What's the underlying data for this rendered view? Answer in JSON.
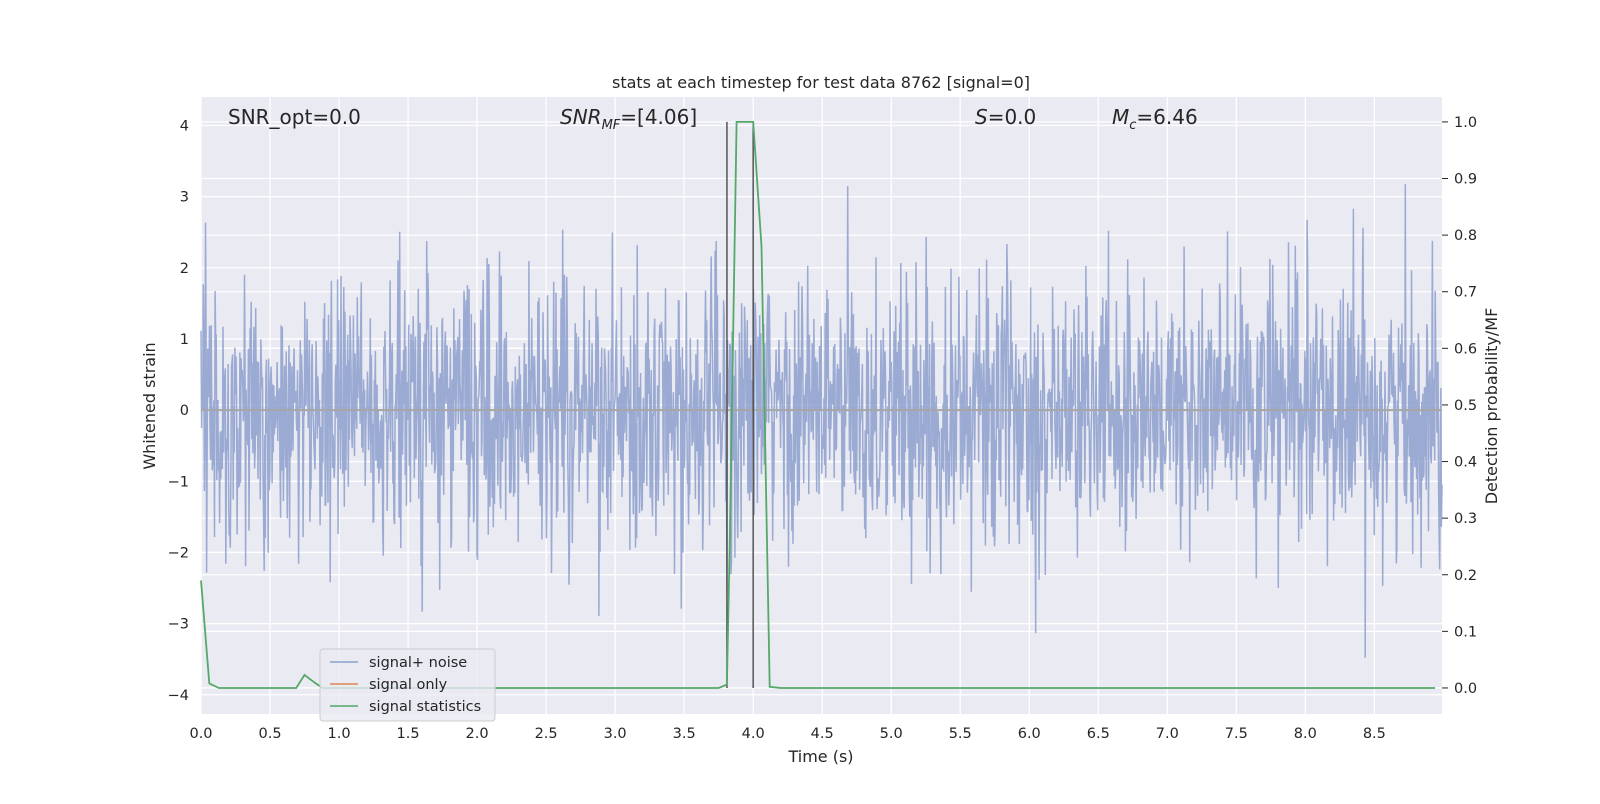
{
  "chart_data": {
    "type": "line",
    "title": "stats at each timestep for test data 8762 [signal=0]",
    "xlabel": "Time (s)",
    "ylabel": "Whitened strain",
    "y2label": "Detection probability/MF",
    "xlim": [
      0.0,
      8.99
    ],
    "ylim": [
      -4.27,
      4.4
    ],
    "y2lim": [
      -0.046,
      1.044
    ],
    "x_ticks": [
      "0.0",
      "0.5",
      "1.0",
      "1.5",
      "2.0",
      "2.5",
      "3.0",
      "3.5",
      "4.0",
      "4.5",
      "5.0",
      "5.5",
      "6.0",
      "6.5",
      "7.0",
      "7.5",
      "8.0",
      "8.5"
    ],
    "y_ticks": [
      "4",
      "3",
      "2",
      "1",
      "0",
      "−1",
      "−2",
      "−3",
      "−4"
    ],
    "y2_ticks": [
      "1.0",
      "0.9",
      "0.8",
      "0.7",
      "0.6",
      "0.5",
      "0.4",
      "0.3",
      "0.2",
      "0.1",
      "0.0"
    ],
    "grid": true,
    "annotations": {
      "snr_opt": "SNR_opt=0.0",
      "snr_mf_base": "SNR",
      "snr_mf_sub": "MF",
      "snr_mf_value": "=[4.06]",
      "s_sym": "S",
      "s_value": "=0.0",
      "mc_base": "M",
      "mc_sub": "c",
      "mc_value": "=6.46"
    },
    "vertical_markers": [
      3.81,
      4.0
    ],
    "series": [
      {
        "name": "signal+ noise",
        "color": "#8c9fcc",
        "note": "whitened noise, amplitude roughly within ±2.5 with spikes to about ±4"
      },
      {
        "name": "signal only",
        "color": "#dd8452",
        "x": [
          0.0,
          8.99
        ],
        "y": [
          0.0,
          0.0
        ]
      },
      {
        "name": "signal statistics",
        "color": "#55a868",
        "x": [
          0.0,
          0.06,
          0.13,
          0.2,
          0.3,
          0.4,
          0.5,
          0.6,
          0.69,
          0.75,
          0.82,
          0.88,
          0.94,
          1.0,
          1.5,
          2.0,
          2.5,
          3.0,
          3.5,
          3.75,
          3.81,
          3.83,
          3.88,
          3.94,
          4.0,
          4.06,
          4.12,
          4.2,
          5.0,
          6.0,
          7.0,
          8.0,
          8.94
        ],
        "y": [
          0.19,
          0.008,
          0.0,
          0.0,
          0.0,
          0.0,
          0.0,
          0.0,
          0.0,
          0.023,
          0.01,
          0.0,
          0.0,
          0.0,
          0.0,
          0.0,
          0.0,
          0.0,
          0.0,
          0.0,
          0.006,
          0.25,
          1.0,
          1.0,
          1.0,
          0.78,
          0.002,
          0.0,
          0.0,
          0.0,
          0.0,
          0.0,
          0.0
        ]
      }
    ],
    "legend": {
      "position": "lower-left"
    }
  }
}
